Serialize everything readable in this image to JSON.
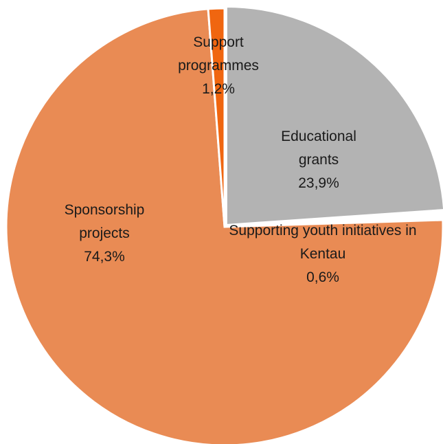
{
  "chart_data": {
    "type": "pie",
    "title": "",
    "slices": [
      {
        "name": "Educational grants",
        "value": 23.9,
        "label_lines": [
          "Educational",
          "grants",
          "23,9%"
        ],
        "color": "#b3b3b3"
      },
      {
        "name": "Supporting youth initiatives in Kentau",
        "value": 0.6,
        "label_lines": [
          "Supporting youth initiatives in",
          "Kentau",
          "0,6%"
        ],
        "color": "#ffffff"
      },
      {
        "name": "Sponsorship projects",
        "value": 74.3,
        "label_lines": [
          "Sponsorship",
          "projects",
          "74,3%"
        ],
        "color": "#e98b54"
      },
      {
        "name": "Support programmes",
        "value": 1.2,
        "label_lines": [
          "Support",
          "programmes",
          "1,2%"
        ],
        "color": "#f06610"
      }
    ]
  }
}
